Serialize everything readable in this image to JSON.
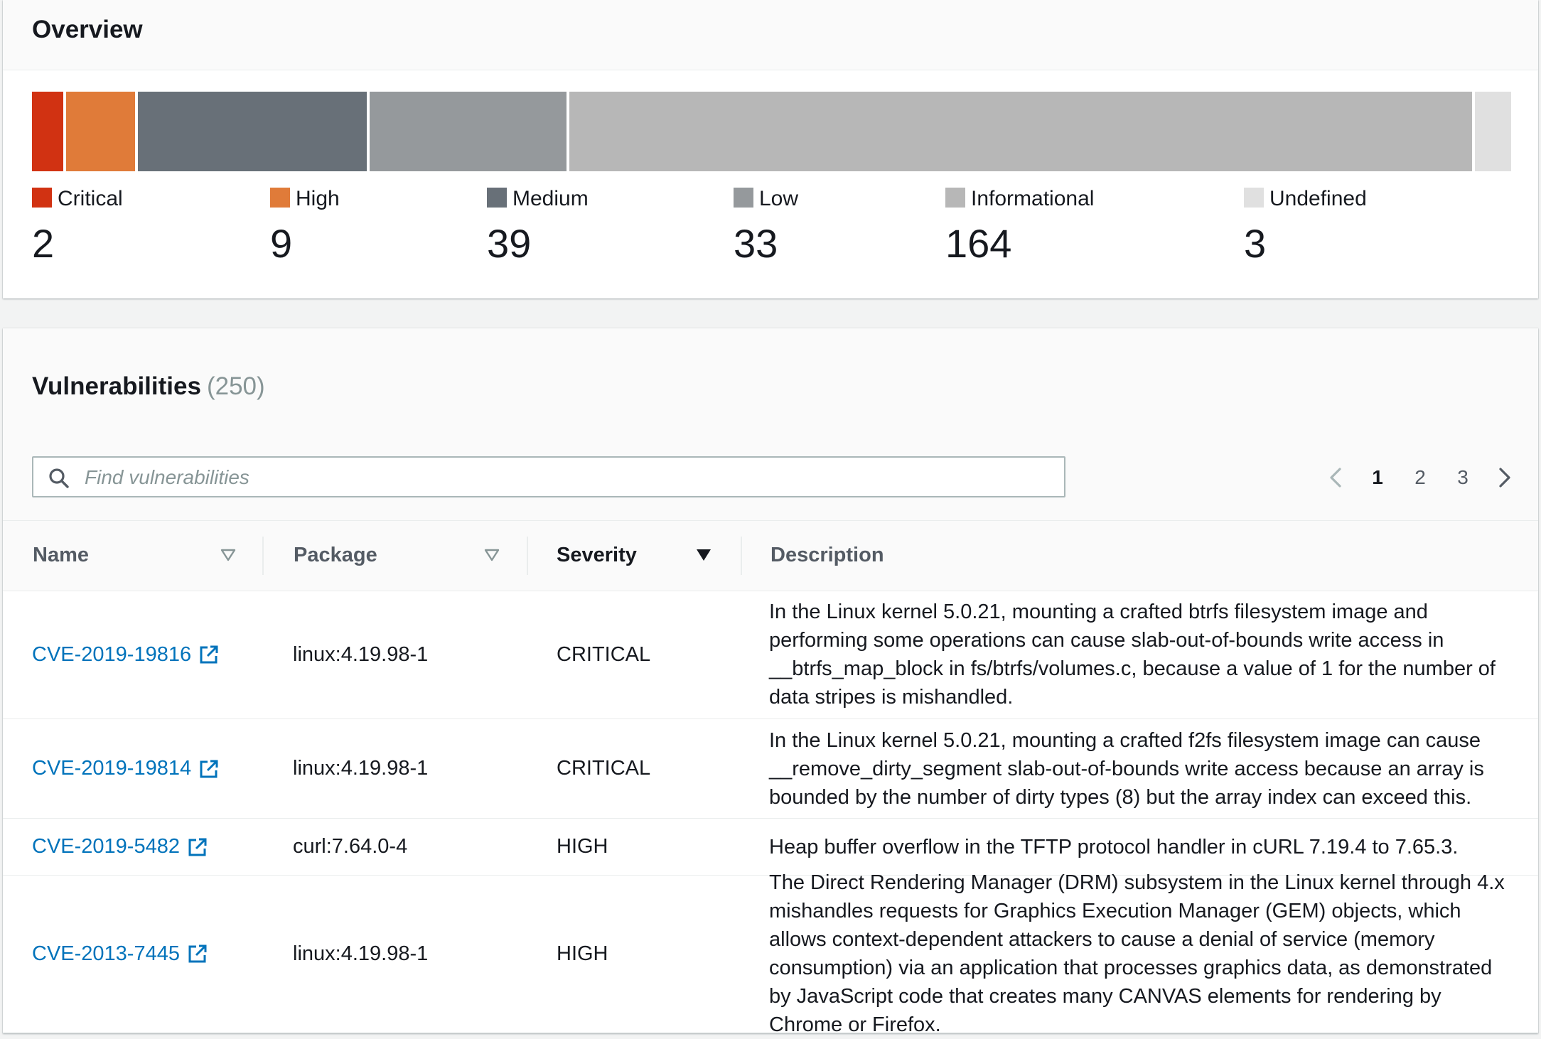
{
  "overview": {
    "title": "Overview",
    "severities": [
      {
        "label": "Critical",
        "count": 2,
        "color": "#d13212"
      },
      {
        "label": "High",
        "count": 9,
        "color": "#e07b39"
      },
      {
        "label": "Medium",
        "count": 39,
        "color": "#687078"
      },
      {
        "label": "Low",
        "count": 33,
        "color": "#95999c"
      },
      {
        "label": "Informational",
        "count": 164,
        "color": "#b7b7b7"
      },
      {
        "label": "Undefined",
        "count": 3,
        "color": "#e0e0e0"
      }
    ]
  },
  "vulnerabilities": {
    "title": "Vulnerabilities",
    "count_text": "(250)",
    "search": {
      "placeholder": "Find vulnerabilities"
    },
    "pagination": {
      "pages": [
        "1",
        "2",
        "3"
      ],
      "current": "1"
    },
    "columns": {
      "name": "Name",
      "package": "Package",
      "severity": "Severity",
      "description": "Description"
    },
    "rows": [
      {
        "name": "CVE-2019-19816",
        "package": "linux:4.19.98-1",
        "severity": "CRITICAL",
        "description": "In the Linux kernel 5.0.21, mounting a crafted btrfs filesystem image and performing some operations can cause slab-out-of-bounds write access in __btrfs_map_block in fs/btrfs/volumes.c, because a value of 1 for the number of data stripes is mishandled."
      },
      {
        "name": "CVE-2019-19814",
        "package": "linux:4.19.98-1",
        "severity": "CRITICAL",
        "description": "In the Linux kernel 5.0.21, mounting a crafted f2fs filesystem image can cause __remove_dirty_segment slab-out-of-bounds write access because an array is bounded by the number of dirty types (8) but the array index can exceed this."
      },
      {
        "name": "CVE-2019-5482",
        "package": "curl:7.64.0-4",
        "severity": "HIGH",
        "description": "Heap buffer overflow in the TFTP protocol handler in cURL 7.19.4 to 7.65.3."
      },
      {
        "name": "CVE-2013-7445",
        "package": "linux:4.19.98-1",
        "severity": "HIGH",
        "description": "The Direct Rendering Manager (DRM) subsystem in the Linux kernel through 4.x mishandles requests for Graphics Execution Manager (GEM) objects, which allows context-dependent attackers to cause a denial of service (memory consumption) via an application that processes graphics data, as demonstrated by JavaScript code that creates many CANVAS elements for rendering by Chrome or Firefox."
      }
    ]
  }
}
